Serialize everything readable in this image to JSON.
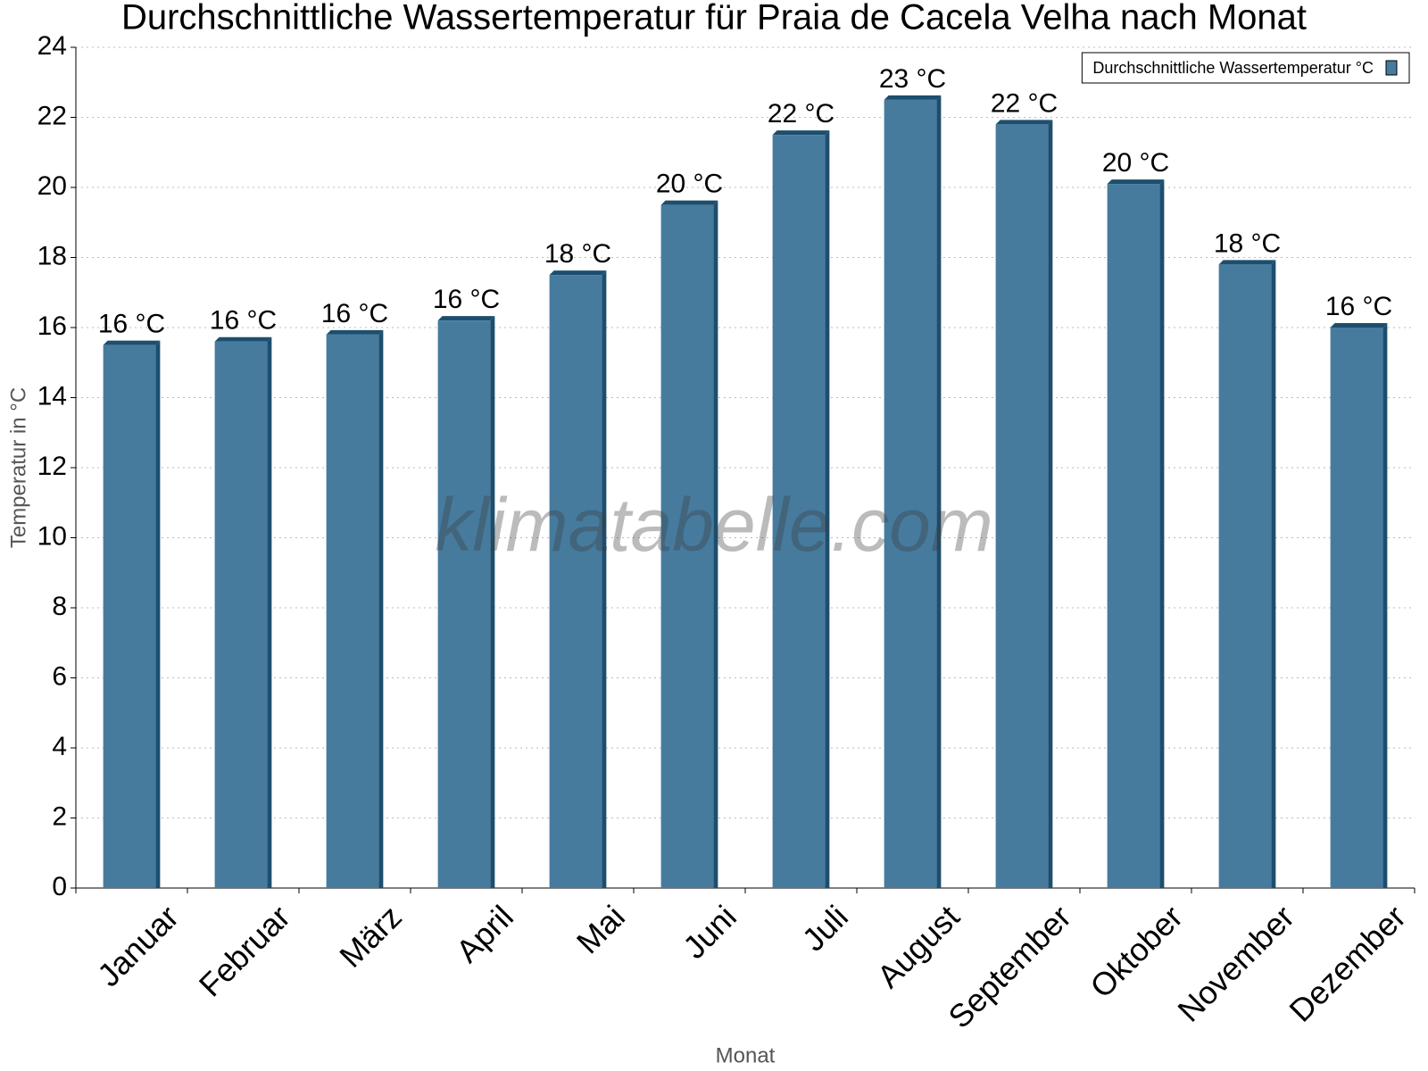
{
  "chart_data": {
    "type": "bar",
    "title": "Durchschnittliche Wassertemperatur für Praia de Cacela Velha nach Monat",
    "x_label": "Monat",
    "y_label": "Temperatur in °C",
    "watermark": "klimatabelle.com",
    "categories": [
      "Januar",
      "Februar",
      "März",
      "April",
      "Mai",
      "Juni",
      "Juli",
      "August",
      "September",
      "Oktober",
      "November",
      "Dezember"
    ],
    "series": [
      {
        "name": "Durchschnittliche Wassertemperatur °C",
        "color": "#467b9e",
        "values": [
          15.5,
          15.6,
          15.8,
          16.2,
          17.5,
          19.5,
          21.5,
          22.5,
          21.8,
          20.1,
          17.8,
          16.0
        ],
        "value_labels": [
          "16 °C",
          "16 °C",
          "16 °C",
          "16 °C",
          "18 °C",
          "20 °C",
          "22 °C",
          "23 °C",
          "22 °C",
          "20 °C",
          "18 °C",
          "16 °C"
        ]
      }
    ],
    "ylim": [
      0,
      24
    ],
    "yticks": [
      0,
      2,
      4,
      6,
      8,
      10,
      12,
      14,
      16,
      18,
      20,
      22,
      24
    ],
    "grid": true,
    "legend": "top-right"
  }
}
